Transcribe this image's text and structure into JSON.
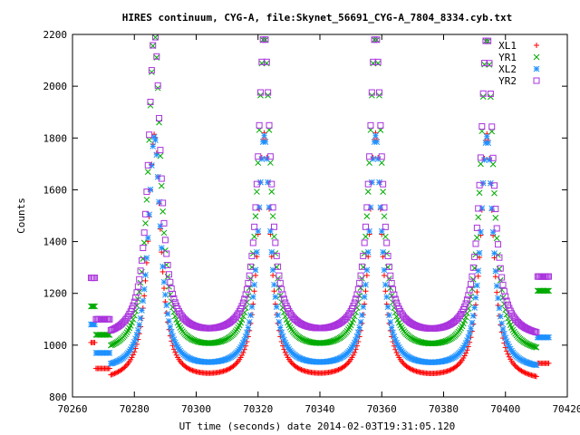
{
  "chart_data": {
    "type": "scatter",
    "title": "HIRES continuum, CYG-A, file:Skynet_56691_CYG-A_7804_8334.cyb.txt",
    "xlabel": "UT time (seconds) date 2014-02-03T19:31:05.120",
    "ylabel": "Counts",
    "xlim": [
      70260,
      70420
    ],
    "ylim": [
      800,
      2200
    ],
    "x_ticks": [
      "70260",
      "70280",
      "70300",
      "70320",
      "70340",
      "70360",
      "70380",
      "70400",
      "70420"
    ],
    "y_ticks": [
      "800",
      "1000",
      "1200",
      "1400",
      "1600",
      "1800",
      "2000",
      "2200"
    ],
    "x_tick_values": [
      70260,
      70280,
      70300,
      70320,
      70340,
      70360,
      70380,
      70400,
      70420
    ],
    "y_tick_values": [
      800,
      1000,
      1200,
      1400,
      1600,
      1800,
      2000,
      2200
    ],
    "legend_position": "top-right",
    "grid": false,
    "x_start": 70266,
    "x_end": 70414,
    "x_step": 0.4,
    "peak_centers": [
      70286.5,
      70322,
      70358,
      70394
    ],
    "series": [
      {
        "name": "XL1",
        "marker": "plus",
        "color": "#ff0000",
        "baseline": 855,
        "start_level": 1010,
        "edge_level": 1120,
        "peak": 1810,
        "shoulder_base": 910,
        "end_level": 930
      },
      {
        "name": "YR1",
        "marker": "cross",
        "color": "#00aa00",
        "baseline": 960,
        "start_level": 1150,
        "edge_level": 1250,
        "peak": 2200,
        "shoulder_base": 1040,
        "end_level": 1210
      },
      {
        "name": "XL2",
        "marker": "star",
        "color": "#1e90ff",
        "baseline": 900,
        "start_level": 1080,
        "edge_level": 1200,
        "peak": 1800,
        "shoulder_base": 970,
        "end_level": 1030
      },
      {
        "name": "YR2",
        "marker": "square",
        "color": "#aa33dd",
        "baseline": 1020,
        "start_level": 1260,
        "edge_level": 1270,
        "peak": 2200,
        "shoulder_base": 1100,
        "end_level": 1265
      }
    ]
  }
}
